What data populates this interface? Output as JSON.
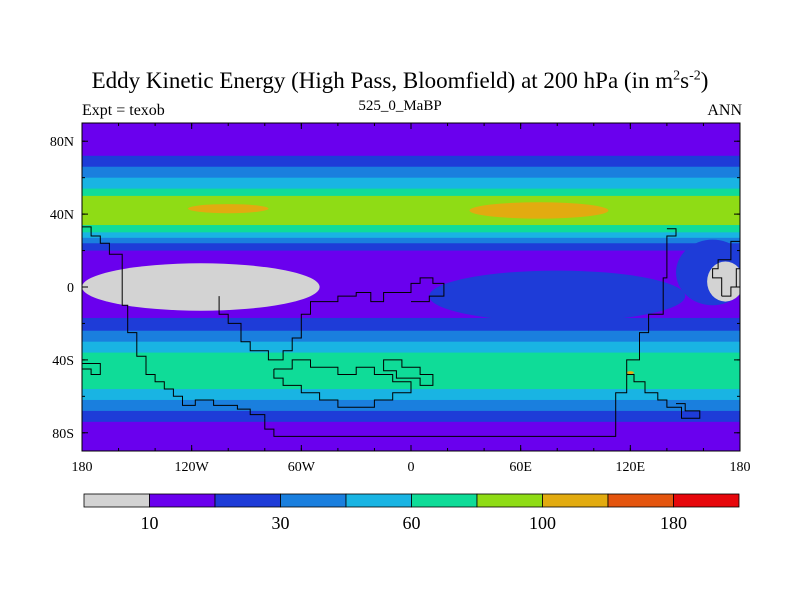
{
  "title": {
    "main": "Eddy Kinetic Energy (High Pass, Bloomfield) at 200 hPa (in m",
    "sup1": "2",
    "mid": "s",
    "sup2": "-2",
    "end": ")"
  },
  "left_label": "Expt = texob",
  "center_label": "525_0_MaBP",
  "right_label": "ANN",
  "colors": {
    "c0": "#d3d3d3",
    "c1": "#6a00ee",
    "c2": "#1e3cd8",
    "c3": "#1a7fde",
    "c4": "#19b4e3",
    "c5": "#0fdc98",
    "c6": "#8fdc15",
    "c7": "#e2ab10",
    "c8": "#e4550e",
    "c9": "#e6070c",
    "coast": "#000000"
  },
  "chart_data": {
    "type": "heatmap",
    "title": "Eddy Kinetic Energy (High Pass, Bloomfield) at 200 hPa (in m^2 s^-2)",
    "xlim": [
      -180,
      180
    ],
    "ylim": [
      -90,
      90
    ],
    "x_ticks": [
      {
        "value": -180,
        "label": "180"
      },
      {
        "value": -120,
        "label": "120W"
      },
      {
        "value": -60,
        "label": "60W"
      },
      {
        "value": 0,
        "label": "0"
      },
      {
        "value": 60,
        "label": "60E"
      },
      {
        "value": 120,
        "label": "120E"
      },
      {
        "value": 180,
        "label": "180"
      }
    ],
    "y_ticks": [
      {
        "value": 80,
        "label": "80N"
      },
      {
        "value": 40,
        "label": "40N"
      },
      {
        "value": 0,
        "label": "0"
      },
      {
        "value": -40,
        "label": "40S"
      },
      {
        "value": -80,
        "label": "80S"
      }
    ],
    "colorbar": {
      "colors": [
        "#d3d3d3",
        "#6a00ee",
        "#1e3cd8",
        "#1a7fde",
        "#19b4e3",
        "#0fdc98",
        "#8fdc15",
        "#e2ab10",
        "#e4550e",
        "#e6070c"
      ],
      "labels": [
        {
          "after_box": 1,
          "label": "10"
        },
        {
          "after_box": 3,
          "label": "30"
        },
        {
          "after_box": 5,
          "label": "60"
        },
        {
          "after_box": 7,
          "label": "100"
        },
        {
          "after_box": 9,
          "label": "180"
        }
      ]
    },
    "zonal_bands": [
      {
        "lat": [
          80,
          90
        ],
        "level": 1
      },
      {
        "lat": [
          72,
          80
        ],
        "level": 1
      },
      {
        "lat": [
          66,
          72
        ],
        "level": 2
      },
      {
        "lat": [
          60,
          66
        ],
        "level": 3
      },
      {
        "lat": [
          54,
          60
        ],
        "level": 4
      },
      {
        "lat": [
          50,
          54
        ],
        "level": 5
      },
      {
        "lat": [
          34,
          50
        ],
        "level": 6
      },
      {
        "lat": [
          30,
          34
        ],
        "level": 5
      },
      {
        "lat": [
          27,
          30
        ],
        "level": 4
      },
      {
        "lat": [
          24,
          27
        ],
        "level": 3
      },
      {
        "lat": [
          20,
          24
        ],
        "level": 2
      },
      {
        "lat": [
          14,
          20
        ],
        "level": 1
      },
      {
        "lat": [
          -17,
          14
        ],
        "level": 1
      },
      {
        "lat": [
          -24,
          -17
        ],
        "level": 2
      },
      {
        "lat": [
          -30,
          -24
        ],
        "level": 3
      },
      {
        "lat": [
          -36,
          -30
        ],
        "level": 4
      },
      {
        "lat": [
          -56,
          -36
        ],
        "level": 5
      },
      {
        "lat": [
          -62,
          -56
        ],
        "level": 4
      },
      {
        "lat": [
          -68,
          -62
        ],
        "level": 3
      },
      {
        "lat": [
          -74,
          -68
        ],
        "level": 2
      },
      {
        "lat": [
          -90,
          -74
        ],
        "level": 1
      }
    ],
    "patches": [
      {
        "level": 7,
        "cx": -100,
        "cy": 43,
        "rx": 22,
        "ry": 2.5
      },
      {
        "level": 7,
        "cx": 70,
        "cy": 42,
        "rx": 38,
        "ry": 4.5
      },
      {
        "level": 2,
        "cx": 80,
        "cy": -5,
        "rx": 70,
        "ry": 14
      },
      {
        "level": 2,
        "cx": 165,
        "cy": 8,
        "rx": 20,
        "ry": 18
      },
      {
        "level": 0,
        "cx": -115,
        "cy": 0,
        "rx": 65,
        "ry": 13
      },
      {
        "level": 0,
        "cx": 172,
        "cy": 3,
        "rx": 10,
        "ry": 11
      },
      {
        "level": 7,
        "cx": 120,
        "cy": -47,
        "rx": 2,
        "ry": 0.8
      }
    ]
  }
}
